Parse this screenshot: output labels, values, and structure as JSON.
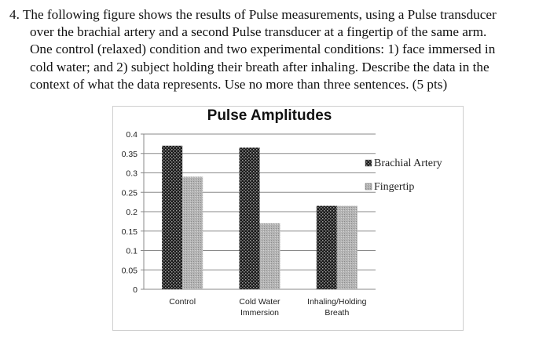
{
  "question": {
    "lines": [
      "4. The following figure shows the results of Pulse measurements, using a Pulse transducer",
      "over the brachial artery and a second Pulse transducer at a fingertip of the same arm.",
      "One control (relaxed) condition and two experimental conditions: 1) face immersed in",
      "cold water; and 2) subject holding their breath after inhaling.  Describe the data in the",
      "context of what the data represents. Use no more than three sentences.  (5 pts)"
    ]
  },
  "chart_data": {
    "type": "bar",
    "title": "Pulse Amplitudes",
    "categories": [
      [
        "Control"
      ],
      [
        "Cold Water",
        "Immersion"
      ],
      [
        "Inhaling/Holding",
        "Breath"
      ]
    ],
    "series": [
      {
        "name": "Brachial Artery",
        "values": [
          0.37,
          0.365,
          0.215
        ],
        "color": "#2a2a2a"
      },
      {
        "name": "Fingertip",
        "values": [
          0.29,
          0.17,
          0.215
        ],
        "color": "#a8a8a8"
      }
    ],
    "yticks": [
      "0",
      "0.05",
      "0.1",
      "0.15",
      "0.2",
      "0.25",
      "0.3",
      "0.35",
      "0.4"
    ],
    "ylim": [
      0,
      0.4
    ],
    "grid": true,
    "legend": "right"
  }
}
